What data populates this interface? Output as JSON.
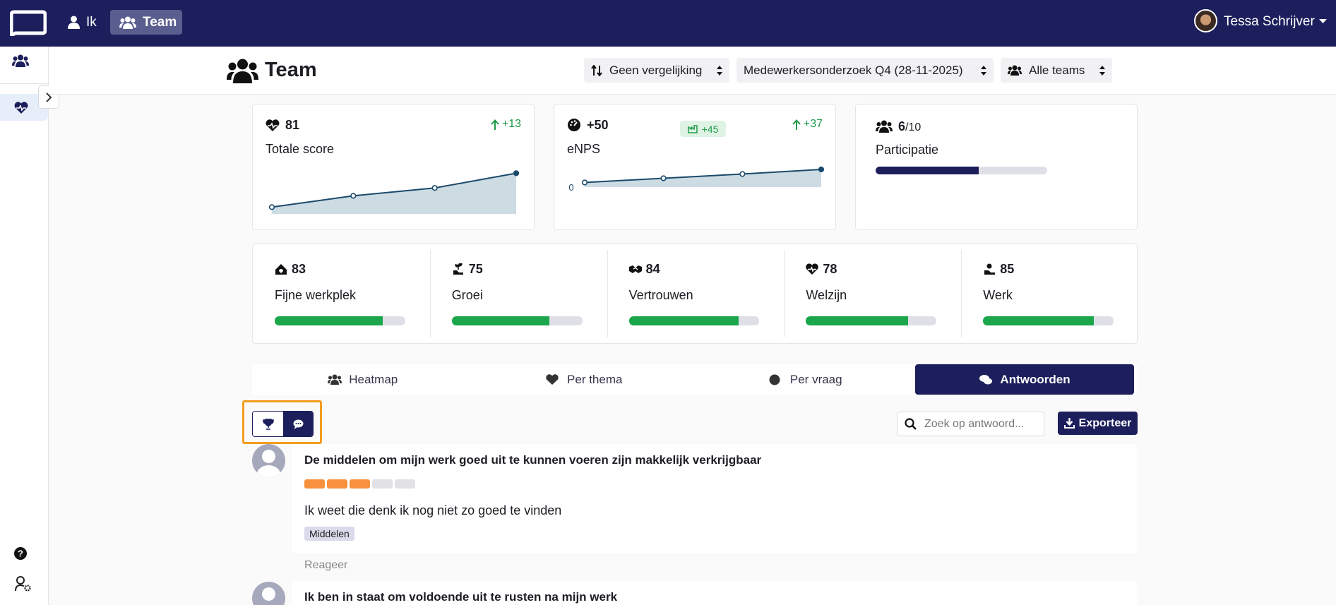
{
  "nav": {
    "items": [
      "Ik",
      "Team"
    ],
    "user": "Tessa Schrijver"
  },
  "header": {
    "title": "Team",
    "filters": [
      "Geen vergelijking",
      "Medewerkersonderzoek Q4 (28-11-2025)",
      "Alle teams"
    ]
  },
  "summary": {
    "total_score": {
      "value": 81,
      "delta": "+13",
      "label": "Totale score",
      "trend": [
        51,
        61,
        68,
        81
      ],
      "ylim": [
        45,
        85
      ]
    },
    "enps": {
      "value": "+50",
      "benchmark": "+45",
      "delta": "+37",
      "label": "eNPS",
      "trend": [
        13,
        25,
        37,
        50
      ],
      "ylim": [
        0,
        50
      ],
      "yticks": [
        0
      ]
    },
    "participation": {
      "value": 6,
      "total": {
        "value": 10,
        "label": "/10"
      },
      "label": "Participatie"
    }
  },
  "themes": {
    "xlim": [
      0,
      100
    ],
    "items": [
      {
        "name": "Fijne werkplek",
        "score": 83
      },
      {
        "name": "Groei",
        "score": 75
      },
      {
        "name": "Vertrouwen",
        "score": 84
      },
      {
        "name": "Welzijn",
        "score": 78
      },
      {
        "name": "Werk",
        "score": 85
      }
    ]
  },
  "tabs": {
    "items": [
      "Heatmap",
      "Per thema",
      "Per vraag",
      "Antwoorden"
    ],
    "active": 3
  },
  "toolbar": {
    "search_placeholder": "Zoek op antwoord...",
    "export": "Exporteer"
  },
  "answers": [
    {
      "question": "De middelen om mijn werk goed uit te kunnen voeren zijn makkelijk verkrijgbaar",
      "rating": {
        "value": 3,
        "max": 5
      },
      "text": "Ik weet die denk ik nog niet zo goed te vinden",
      "tags": [
        "Middelen"
      ],
      "reply": "Reageer"
    },
    {
      "question": "Ik ben in staat om voldoende uit te rusten na mijn werk"
    }
  ]
}
